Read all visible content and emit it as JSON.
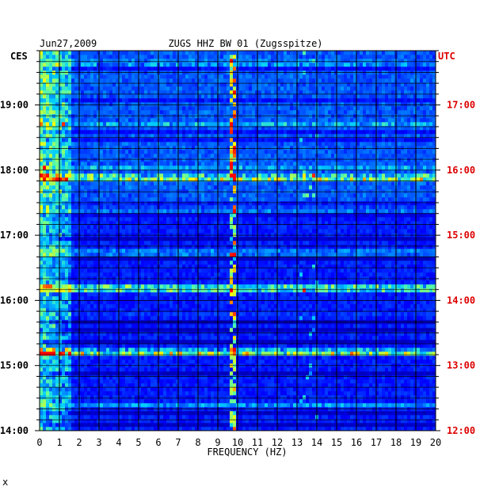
{
  "chart_data": {
    "type": "heatmap",
    "date": "Jun27,2009",
    "title": "ZUGS HHZ BW 01 (Zugsspitze)",
    "left_axis_label": "CES",
    "right_axis_label": "UTC",
    "xlabel": "FREQUENCY (HZ)",
    "xlim": [
      0,
      20
    ],
    "x_ticks": [
      "0",
      "1",
      "2",
      "3",
      "4",
      "5",
      "6",
      "7",
      "8",
      "9",
      "10",
      "11",
      "12",
      "13",
      "14",
      "15",
      "16",
      "17",
      "18",
      "19",
      "20"
    ],
    "left_time_ticks": [
      "14:00",
      "15:00",
      "16:00",
      "17:00",
      "18:00",
      "19:00"
    ],
    "right_time_ticks": [
      "12:00",
      "13:00",
      "14:00",
      "15:00",
      "16:00",
      "17:00"
    ],
    "time_range_ces": [
      "14:00",
      "19:50"
    ],
    "utc_offset_hours": -2,
    "grid": true,
    "colormap": [
      "#00008b",
      "#0000ff",
      "#0066ff",
      "#00ccff",
      "#66ff99",
      "#ffff00",
      "#ff0000"
    ],
    "features": {
      "persistent_tonal_line_hz": 9.7,
      "low_freq_energy_band_hz": [
        0,
        1.5
      ],
      "strong_broadband_rows_ces": [
        "15:13",
        "16:10",
        "17:55"
      ]
    },
    "colors": {
      "background": "#ffffff",
      "axis_text": "#000000",
      "utc_text": "#dd0000",
      "grid": "#000000"
    }
  },
  "footer_mark": "x"
}
